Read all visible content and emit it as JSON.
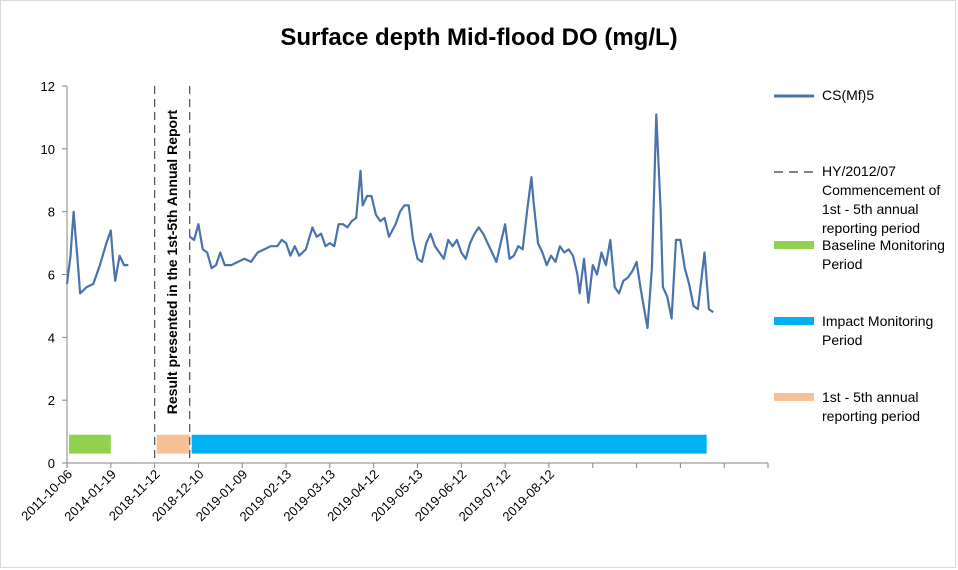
{
  "colors": {
    "series": "#4a73ad",
    "baseline": "#92d050",
    "impact": "#00b0f0",
    "reporting": "#f8c097",
    "dash": "#595959"
  },
  "chart_data": {
    "type": "line",
    "title": "Surface depth Mid-flood DO (mg/L)",
    "xlabel": "",
    "ylabel": "",
    "ylim": [
      0,
      12
    ],
    "yticks": [
      "0",
      "2",
      "4",
      "6",
      "8",
      "10",
      "12"
    ],
    "xtick_labels": [
      "2011-10-06",
      "2014-01-19",
      "2018-11-12",
      "2018-12-10",
      "2019-01-09",
      "2019-02-13",
      "2019-03-13",
      "2019-04-12",
      "2019-05-13",
      "2019-06-12",
      "2019-07-12",
      "2019-08-12"
    ],
    "x_categories": 16,
    "grid": false,
    "legend_position": "right",
    "series": [
      {
        "name": "CS(Mf)5",
        "segments": [
          [
            [
              0.0,
              5.7
            ],
            [
              0.08,
              6.6
            ],
            [
              0.15,
              8.0
            ],
            [
              0.25,
              6.3
            ],
            [
              0.3,
              5.4
            ],
            [
              0.45,
              5.6
            ],
            [
              0.6,
              5.7
            ],
            [
              0.75,
              6.3
            ],
            [
              0.9,
              7.0
            ],
            [
              1.0,
              7.4
            ],
            [
              1.05,
              6.5
            ],
            [
              1.1,
              5.8
            ],
            [
              1.2,
              6.6
            ],
            [
              1.3,
              6.3
            ],
            [
              1.4,
              6.3
            ]
          ],
          [
            [
              2.8,
              7.2
            ],
            [
              2.9,
              7.1
            ],
            [
              3.0,
              7.6
            ],
            [
              3.1,
              6.8
            ],
            [
              3.2,
              6.7
            ],
            [
              3.3,
              6.2
            ],
            [
              3.4,
              6.3
            ],
            [
              3.5,
              6.7
            ],
            [
              3.6,
              6.3
            ],
            [
              3.75,
              6.3
            ],
            [
              3.9,
              6.4
            ],
            [
              4.05,
              6.5
            ],
            [
              4.2,
              6.4
            ],
            [
              4.35,
              6.7
            ],
            [
              4.5,
              6.8
            ],
            [
              4.65,
              6.9
            ],
            [
              4.8,
              6.9
            ],
            [
              4.9,
              7.1
            ],
            [
              5.0,
              7.0
            ],
            [
              5.1,
              6.6
            ],
            [
              5.2,
              6.9
            ],
            [
              5.3,
              6.6
            ],
            [
              5.45,
              6.8
            ],
            [
              5.6,
              7.5
            ],
            [
              5.7,
              7.2
            ],
            [
              5.8,
              7.3
            ],
            [
              5.9,
              6.9
            ],
            [
              6.0,
              7.0
            ],
            [
              6.1,
              6.9
            ],
            [
              6.2,
              7.6
            ],
            [
              6.3,
              7.6
            ],
            [
              6.4,
              7.5
            ],
            [
              6.5,
              7.7
            ],
            [
              6.6,
              7.8
            ],
            [
              6.7,
              9.3
            ],
            [
              6.75,
              8.2
            ],
            [
              6.85,
              8.5
            ],
            [
              6.95,
              8.5
            ],
            [
              7.05,
              7.9
            ],
            [
              7.15,
              7.7
            ],
            [
              7.25,
              7.8
            ],
            [
              7.35,
              7.2
            ],
            [
              7.5,
              7.6
            ],
            [
              7.6,
              8.0
            ],
            [
              7.7,
              8.2
            ],
            [
              7.8,
              8.2
            ],
            [
              7.9,
              7.1
            ],
            [
              8.0,
              6.5
            ],
            [
              8.1,
              6.4
            ],
            [
              8.2,
              7.0
            ],
            [
              8.3,
              7.3
            ],
            [
              8.4,
              6.9
            ],
            [
              8.5,
              6.7
            ],
            [
              8.6,
              6.5
            ],
            [
              8.7,
              7.1
            ],
            [
              8.8,
              6.9
            ],
            [
              8.9,
              7.1
            ],
            [
              9.0,
              6.7
            ],
            [
              9.1,
              6.5
            ],
            [
              9.2,
              7.0
            ],
            [
              9.3,
              7.3
            ],
            [
              9.4,
              7.5
            ],
            [
              9.5,
              7.3
            ],
            [
              9.6,
              7.0
            ],
            [
              9.7,
              6.7
            ],
            [
              9.8,
              6.4
            ],
            [
              9.9,
              7.0
            ],
            [
              10.0,
              7.6
            ],
            [
              10.1,
              6.5
            ],
            [
              10.2,
              6.6
            ],
            [
              10.3,
              6.9
            ],
            [
              10.4,
              6.8
            ],
            [
              10.5,
              8.0
            ],
            [
              10.6,
              9.1
            ],
            [
              10.65,
              8.3
            ],
            [
              10.75,
              7.0
            ],
            [
              10.85,
              6.7
            ],
            [
              10.95,
              6.3
            ],
            [
              11.05,
              6.6
            ],
            [
              11.15,
              6.4
            ],
            [
              11.25,
              6.9
            ],
            [
              11.35,
              6.7
            ],
            [
              11.45,
              6.8
            ],
            [
              11.55,
              6.6
            ],
            [
              11.65,
              6.0
            ],
            [
              11.7,
              5.4
            ],
            [
              11.8,
              6.5
            ],
            [
              11.9,
              5.1
            ],
            [
              12.0,
              6.3
            ],
            [
              12.1,
              6.0
            ],
            [
              12.2,
              6.7
            ],
            [
              12.3,
              6.3
            ],
            [
              12.4,
              7.1
            ],
            [
              12.5,
              5.6
            ],
            [
              12.6,
              5.4
            ],
            [
              12.7,
              5.8
            ],
            [
              12.8,
              5.9
            ],
            [
              12.9,
              6.1
            ],
            [
              13.0,
              6.4
            ],
            [
              13.1,
              5.5
            ],
            [
              13.25,
              4.3
            ],
            [
              13.35,
              6.2
            ],
            [
              13.45,
              11.1
            ],
            [
              13.55,
              8.0
            ],
            [
              13.6,
              5.6
            ],
            [
              13.7,
              5.3
            ],
            [
              13.8,
              4.6
            ],
            [
              13.9,
              7.1
            ],
            [
              14.0,
              7.1
            ],
            [
              14.1,
              6.2
            ],
            [
              14.2,
              5.7
            ],
            [
              14.3,
              5.0
            ],
            [
              14.4,
              4.9
            ],
            [
              14.55,
              6.7
            ],
            [
              14.65,
              4.9
            ],
            [
              14.75,
              4.8
            ]
          ]
        ]
      }
    ],
    "bands": [
      {
        "name": "Baseline Monitoring Period",
        "x0": 0.0,
        "x1": 1.0,
        "y": 0.6
      },
      {
        "name": "1st - 5th annual reporting period",
        "x0": 2.0,
        "x1": 2.8,
        "y": 0.6
      },
      {
        "name": "Impact Monitoring Period",
        "x0": 2.8,
        "x1": 14.6,
        "y": 0.6
      }
    ],
    "vlines": [
      {
        "name": "HY/2012/07 Commencement of 1st - 5th annual reporting period",
        "x": 2.0
      },
      {
        "name": "HY/2012/07 Commencement of 1st - 5th annual reporting period",
        "x": 2.8
      }
    ],
    "annotation": "Result presented in the 1st-5th Annual Report"
  },
  "legend": [
    {
      "label": "CS(Mf)5",
      "kind": "line"
    },
    {
      "label": "HY/2012/07 Commencement of 1st - 5th annual reporting period",
      "kind": "dash"
    },
    {
      "label": "Baseline Monitoring Period",
      "kind": "baseline"
    },
    {
      "label": "Impact Monitoring Period",
      "kind": "impact"
    },
    {
      "label": "1st - 5th annual reporting period",
      "kind": "reporting"
    }
  ]
}
